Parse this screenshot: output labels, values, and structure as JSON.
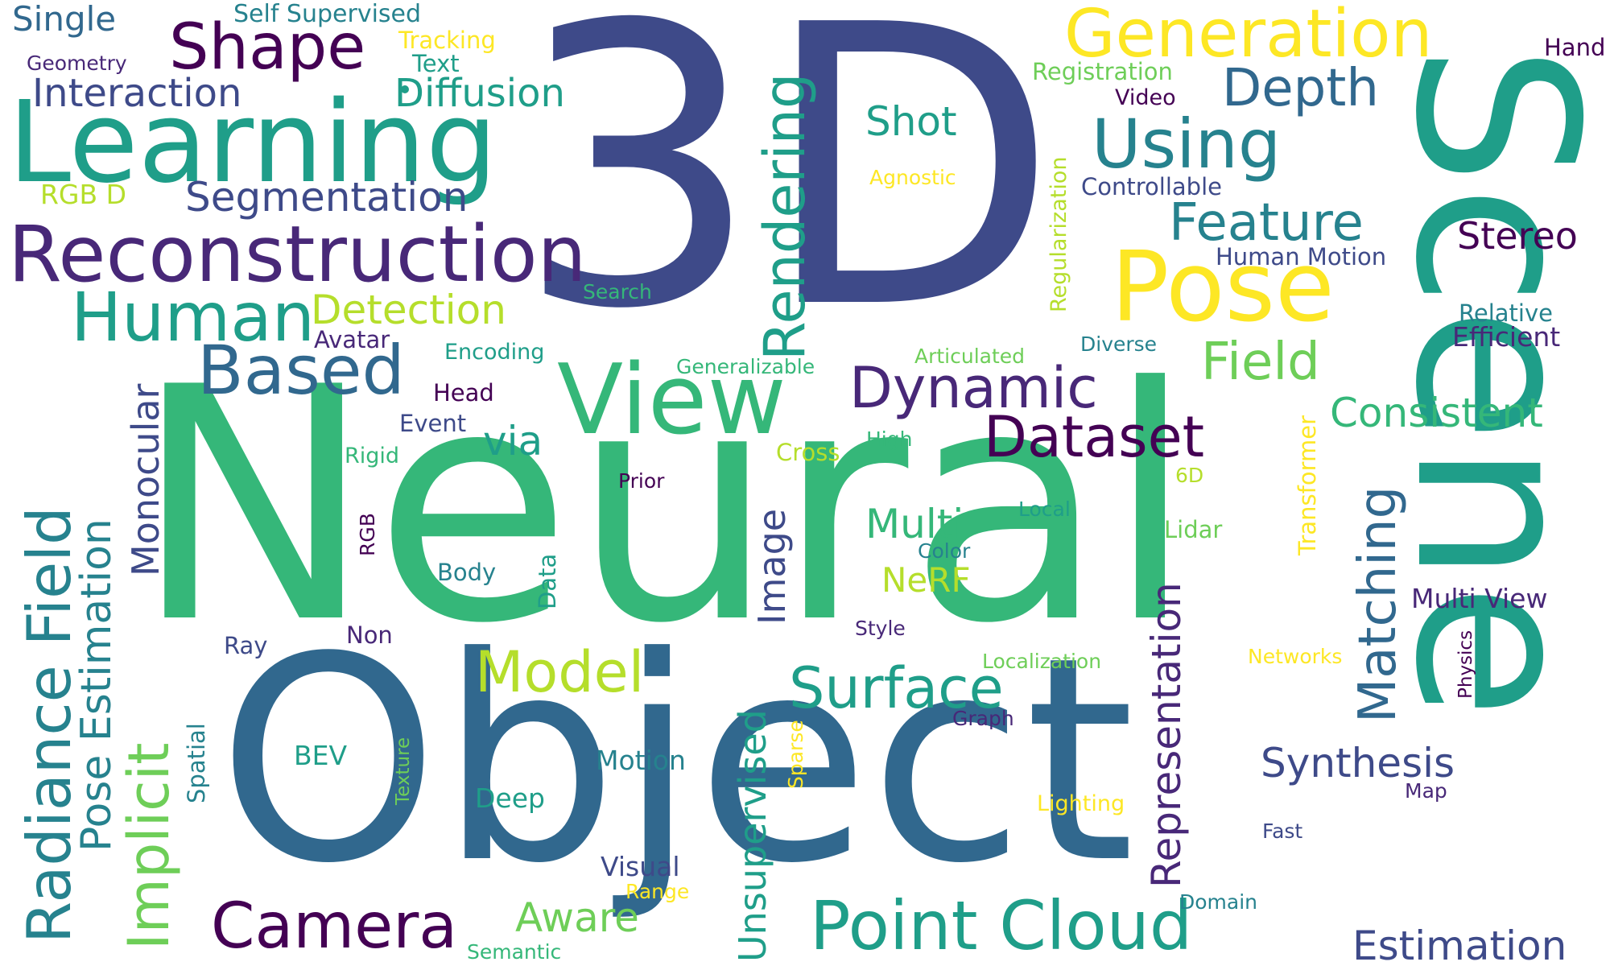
{
  "words": {
    "w_3d": "3D",
    "w_neural": "Neural",
    "w_object": "Object",
    "w_scene": "Scene",
    "w_learning": "Learning",
    "w_reconstruction": "Reconstruction",
    "w_view": "View",
    "w_pose": "Pose",
    "w_generation": "Generation",
    "w_shape": "Shape",
    "w_using": "Using",
    "w_based": "Based",
    "w_human": "Human",
    "w_rendering": "Rendering",
    "w_point_cloud": "Point Cloud",
    "w_camera": "Camera",
    "w_radiance_field": "Radiance Field",
    "w_dynamic": "Dynamic",
    "w_dataset": "Dataset",
    "w_surface": "Surface",
    "w_model": "Model",
    "w_depth": "Depth",
    "w_feature": "Feature",
    "w_field": "Field",
    "w_matching": "Matching",
    "w_representation": "Representation",
    "w_pose_estimation": "Pose Estimation",
    "w_implicit": "Implicit",
    "w_segmentation": "Segmentation",
    "w_interaction": "Interaction",
    "w_diffusion": "Diffusion",
    "w_single": "Single",
    "w_self_supervised": "Self Supervised",
    "w_tracking": "Tracking",
    "w_text": "Text",
    "w_geometry": "Geometry",
    "w_rgbd": "RGB D",
    "w_detection": "Detection",
    "w_avatar": "Avatar",
    "w_encoding": "Encoding",
    "w_head": "Head",
    "w_event": "Event",
    "w_rigid": "Rigid",
    "w_monocular": "Monocular",
    "w_via": "via",
    "w_shot": "Shot",
    "w_agnostic": "Agnostic",
    "w_search": "Search",
    "w_generalizable": "Generalizable",
    "w_articulated": "Articulated",
    "w_diverse": "Diverse",
    "w_high": "High",
    "w_cross": "Cross",
    "w_prior": "Prior",
    "w_multi": "Multi",
    "w_image": "Image",
    "w_nerf": "NeRF",
    "w_color": "Color",
    "w_local": "Local",
    "w_6d": "6D",
    "w_lidar": "Lidar",
    "w_rgb": "RGB",
    "w_body": "Body",
    "w_data": "Data",
    "w_style": "Style",
    "w_non": "Non",
    "w_ray": "Ray",
    "w_localization": "Localization",
    "w_graph": "Graph",
    "w_unsupervised": "Unsupervised",
    "w_sparse": "Sparse",
    "w_motion": "Motion",
    "w_deep": "Deep",
    "w_visual": "Visual",
    "w_range": "Range",
    "w_aware": "Aware",
    "w_semantic": "Semantic",
    "w_bev": "BEV",
    "w_texture": "Texture",
    "w_spatial": "Spatial",
    "w_synthesis": "Synthesis",
    "w_lighting": "Lighting",
    "w_map": "Map",
    "w_fast": "Fast",
    "w_domain": "Domain",
    "w_estimation": "Estimation",
    "w_multi_view": "Multi View",
    "w_physics": "Physics",
    "w_networks": "Networks",
    "w_transformer": "Transformer",
    "w_consistent": "Consistent",
    "w_relative": "Relative",
    "w_efficient": "Efficient",
    "w_stereo": "Stereo",
    "w_human_motion": "Human Motion",
    "w_controllable": "Controllable",
    "w_regularization": "Regularization",
    "w_video": "Video",
    "w_registration": "Registration",
    "w_hand": "Hand"
  }
}
